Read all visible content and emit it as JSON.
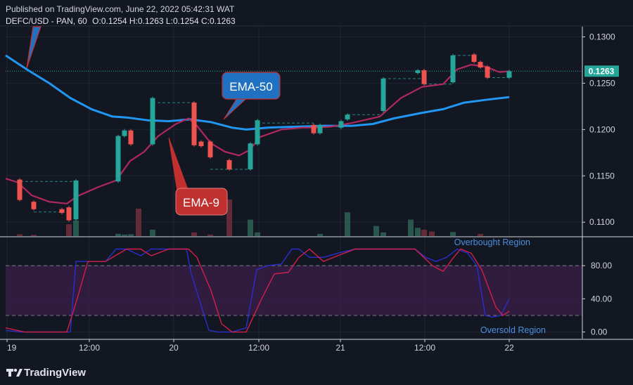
{
  "header": {
    "published": "Published on TradingView.com, June 22, 2022 05:42:31 WAT",
    "symbol_line": "DEFC/USD - PAN, 60",
    "ohlc": [
      {
        "label": "O:",
        "value": "0.1254"
      },
      {
        "label": "H:",
        "value": "0.1263"
      },
      {
        "label": "L:",
        "value": "0.1254"
      },
      {
        "label": "C:",
        "value": "0.1263"
      }
    ]
  },
  "footer": {
    "brand": "TradingView"
  },
  "colors": {
    "background": "#131722",
    "grid": "#1f2433",
    "text": "#d1d4dc",
    "up": "#26a69a",
    "down": "#ef5350",
    "ema50": "#2196f3",
    "ema9": "#b0285c",
    "stoch_k": "#2a2ecd",
    "stoch_d": "#d21f4a",
    "stoch_band": "#3b1f4a",
    "last_price_bg": "#26a69a"
  },
  "chart_data": [
    {
      "type": "candlestick",
      "title": "DEFC/USD - PAN, 60",
      "x": [
        "19",
        "12:00",
        "20",
        "12:00",
        "21",
        "12:00",
        "22"
      ],
      "ylim": [
        0.1085,
        0.1311
      ],
      "y_ticks": [
        "0.1100",
        "0.1150",
        "0.1200",
        "0.1250",
        "0.1300"
      ],
      "y_tick_values": [
        0.11,
        0.115,
        0.12,
        0.125,
        0.13
      ],
      "last_price": "0.1263",
      "last_price_value": 0.1263,
      "candles": [
        {
          "x": 28,
          "o": 0.1146,
          "c": 0.1124
        },
        {
          "x": 48,
          "o": 0.1122,
          "c": 0.1114
        },
        {
          "x": 88,
          "o": 0.1114,
          "c": 0.111
        },
        {
          "x": 98,
          "o": 0.1116,
          "c": 0.1102
        },
        {
          "x": 108,
          "o": 0.1103,
          "c": 0.1145
        },
        {
          "x": 168,
          "o": 0.1144,
          "c": 0.1193
        },
        {
          "x": 177,
          "o": 0.1193,
          "c": 0.1199
        },
        {
          "x": 186,
          "o": 0.1199,
          "c": 0.1184
        },
        {
          "x": 217,
          "o": 0.1184,
          "c": 0.1234
        },
        {
          "x": 276,
          "o": 0.1229,
          "c": 0.1183
        },
        {
          "x": 286,
          "o": 0.1187,
          "c": 0.1182
        },
        {
          "x": 299,
          "o": 0.1187,
          "c": 0.117
        },
        {
          "x": 326,
          "o": 0.1167,
          "c": 0.1157
        },
        {
          "x": 356,
          "o": 0.1157,
          "c": 0.1185
        },
        {
          "x": 366,
          "o": 0.1184,
          "c": 0.121
        },
        {
          "x": 446,
          "o": 0.1205,
          "c": 0.1196
        },
        {
          "x": 455,
          "o": 0.1196,
          "c": 0.1205
        },
        {
          "x": 485,
          "o": 0.1202,
          "c": 0.1209
        },
        {
          "x": 494,
          "o": 0.1211,
          "c": 0.1216
        },
        {
          "x": 545,
          "o": 0.122,
          "c": 0.1255
        },
        {
          "x": 594,
          "o": 0.1261,
          "c": 0.1264
        },
        {
          "x": 603,
          "o": 0.1264,
          "c": 0.1249
        },
        {
          "x": 644,
          "o": 0.1251,
          "c": 0.128
        },
        {
          "x": 674,
          "o": 0.1281,
          "c": 0.1273
        },
        {
          "x": 683,
          "o": 0.1273,
          "c": 0.1267
        },
        {
          "x": 693,
          "o": 0.1268,
          "c": 0.1256
        },
        {
          "x": 724,
          "o": 0.1256,
          "c": 0.1263
        }
      ],
      "volume": [
        {
          "x": 28,
          "v": 0.1,
          "up": false
        },
        {
          "x": 48,
          "v": 0.06,
          "up": false
        },
        {
          "x": 98,
          "v": 0.65,
          "up": false
        },
        {
          "x": 108,
          "v": 0.85,
          "up": true
        },
        {
          "x": 168,
          "v": 0.12,
          "up": true
        },
        {
          "x": 177,
          "v": 0.08,
          "up": true
        },
        {
          "x": 186,
          "v": 0.1,
          "up": true
        },
        {
          "x": 197,
          "v": 1.5,
          "up": false
        },
        {
          "x": 217,
          "v": 0.35,
          "up": true
        },
        {
          "x": 276,
          "v": 0.2,
          "up": false
        },
        {
          "x": 299,
          "v": 0.08,
          "up": false
        },
        {
          "x": 326,
          "v": 2.0,
          "up": false
        },
        {
          "x": 356,
          "v": 0.9,
          "up": true
        },
        {
          "x": 366,
          "v": 0.2,
          "up": true
        },
        {
          "x": 455,
          "v": 0.12,
          "up": true
        },
        {
          "x": 494,
          "v": 1.3,
          "up": true
        },
        {
          "x": 535,
          "v": 0.55,
          "up": true
        },
        {
          "x": 545,
          "v": 0.2,
          "up": true
        },
        {
          "x": 584,
          "v": 0.9,
          "up": true
        },
        {
          "x": 594,
          "v": 0.45,
          "up": true
        },
        {
          "x": 603,
          "v": 0.35,
          "up": false
        },
        {
          "x": 614,
          "v": 0.25,
          "up": false
        },
        {
          "x": 644,
          "v": 0.22,
          "up": true
        },
        {
          "x": 683,
          "v": 0.12,
          "up": false
        }
      ],
      "ema50": [
        [
          8,
          0.128
        ],
        [
          40,
          0.1264
        ],
        [
          70,
          0.125
        ],
        [
          100,
          0.1234
        ],
        [
          130,
          0.1222
        ],
        [
          160,
          0.1214
        ],
        [
          180,
          0.1213
        ],
        [
          210,
          0.121
        ],
        [
          240,
          0.1209
        ],
        [
          270,
          0.1211
        ],
        [
          300,
          0.1208
        ],
        [
          330,
          0.1202
        ],
        [
          350,
          0.12
        ],
        [
          380,
          0.1202
        ],
        [
          420,
          0.1203
        ],
        [
          460,
          0.1204
        ],
        [
          500,
          0.1204
        ],
        [
          530,
          0.1206
        ],
        [
          560,
          0.1212
        ],
        [
          600,
          0.1218
        ],
        [
          630,
          0.1222
        ],
        [
          660,
          0.1229
        ],
        [
          690,
          0.1232
        ],
        [
          724,
          0.1235
        ]
      ],
      "ema9": [
        [
          8,
          0.1147
        ],
        [
          25,
          0.1143
        ],
        [
          45,
          0.1129
        ],
        [
          70,
          0.1122
        ],
        [
          95,
          0.112
        ],
        [
          110,
          0.1128
        ],
        [
          140,
          0.1138
        ],
        [
          165,
          0.1145
        ],
        [
          185,
          0.1166
        ],
        [
          205,
          0.1176
        ],
        [
          225,
          0.1193
        ],
        [
          250,
          0.1206
        ],
        [
          268,
          0.1212
        ],
        [
          280,
          0.1204
        ],
        [
          300,
          0.1185
        ],
        [
          320,
          0.1176
        ],
        [
          340,
          0.1172
        ],
        [
          355,
          0.1178
        ],
        [
          370,
          0.1192
        ],
        [
          400,
          0.12
        ],
        [
          430,
          0.1202
        ],
        [
          450,
          0.1202
        ],
        [
          470,
          0.1203
        ],
        [
          500,
          0.1207
        ],
        [
          540,
          0.1214
        ],
        [
          570,
          0.1234
        ],
        [
          600,
          0.1246
        ],
        [
          630,
          0.1249
        ],
        [
          650,
          0.1265
        ],
        [
          670,
          0.127
        ],
        [
          690,
          0.1268
        ],
        [
          710,
          0.1262
        ],
        [
          724,
          0.1263
        ]
      ],
      "dashes": [
        {
          "x1": 29,
          "x2": 108,
          "y": 0.1144
        },
        {
          "x1": 48,
          "x2": 88,
          "y": 0.1111
        },
        {
          "x1": 217,
          "x2": 276,
          "y": 0.1229
        },
        {
          "x1": 299,
          "x2": 356,
          "y": 0.1157
        },
        {
          "x1": 366,
          "x2": 446,
          "y": 0.1207
        },
        {
          "x1": 494,
          "x2": 545,
          "y": 0.1216
        },
        {
          "x1": 545,
          "x2": 603,
          "y": 0.1255
        },
        {
          "x1": 603,
          "x2": 644,
          "y": 0.1249
        },
        {
          "x1": 644,
          "x2": 674,
          "y": 0.128
        },
        {
          "x1": 693,
          "x2": 724,
          "y": 0.1256
        }
      ],
      "annotations": [
        {
          "label": "EMA-50",
          "color": "#2071c2"
        },
        {
          "label": "EMA-9",
          "color": "#c0302e"
        }
      ]
    },
    {
      "type": "line",
      "title": "",
      "ylim": [
        -8,
        114
      ],
      "y_ticks": [
        "0.00",
        "40.00",
        "80.00"
      ],
      "y_tick_values": [
        0,
        40,
        80
      ],
      "bands": [
        20,
        80
      ],
      "labels": [
        "Overbought Region",
        "Oversold Region"
      ],
      "series": [
        {
          "values": [
            [
              8,
              2
            ],
            [
              30,
              0
            ],
            [
              60,
              0
            ],
            [
              90,
              0
            ],
            [
              100,
              0
            ],
            [
              108,
              85
            ],
            [
              125,
              85
            ],
            [
              150,
              85
            ],
            [
              165,
              100
            ],
            [
              180,
              100
            ],
            [
              200,
              92
            ],
            [
              215,
              100
            ],
            [
              230,
              100
            ],
            [
              250,
              100
            ],
            [
              265,
              100
            ],
            [
              272,
              70
            ],
            [
              283,
              40
            ],
            [
              297,
              2
            ],
            [
              310,
              0
            ],
            [
              330,
              0
            ],
            [
              350,
              5
            ],
            [
              365,
              75
            ],
            [
              380,
              80
            ],
            [
              400,
              82
            ],
            [
              415,
              100
            ],
            [
              425,
              100
            ],
            [
              440,
              90
            ],
            [
              460,
              90
            ],
            [
              480,
              95
            ],
            [
              505,
              100
            ],
            [
              530,
              100
            ],
            [
              560,
              100
            ],
            [
              590,
              100
            ],
            [
              605,
              90
            ],
            [
              620,
              85
            ],
            [
              635,
              90
            ],
            [
              650,
              100
            ],
            [
              665,
              95
            ],
            [
              678,
              80
            ],
            [
              690,
              20
            ],
            [
              700,
              18
            ],
            [
              712,
              20
            ],
            [
              724,
              40
            ]
          ]
        },
        {
          "values": [
            [
              8,
              5
            ],
            [
              35,
              0
            ],
            [
              60,
              0
            ],
            [
              95,
              0
            ],
            [
              108,
              35
            ],
            [
              125,
              85
            ],
            [
              150,
              85
            ],
            [
              180,
              100
            ],
            [
              200,
              100
            ],
            [
              215,
              92
            ],
            [
              240,
              100
            ],
            [
              268,
              100
            ],
            [
              280,
              90
            ],
            [
              300,
              50
            ],
            [
              315,
              10
            ],
            [
              330,
              0
            ],
            [
              350,
              0
            ],
            [
              372,
              40
            ],
            [
              390,
              70
            ],
            [
              410,
              72
            ],
            [
              425,
              90
            ],
            [
              440,
              100
            ],
            [
              460,
              85
            ],
            [
              480,
              92
            ],
            [
              505,
              100
            ],
            [
              560,
              100
            ],
            [
              590,
              100
            ],
            [
              615,
              80
            ],
            [
              630,
              73
            ],
            [
              645,
              90
            ],
            [
              655,
              100
            ],
            [
              670,
              95
            ],
            [
              685,
              75
            ],
            [
              705,
              30
            ],
            [
              715,
              20
            ],
            [
              724,
              25
            ]
          ]
        }
      ],
      "x": [
        "19",
        "12:00",
        "20",
        "12:00",
        "21",
        "12:00",
        "22"
      ]
    }
  ]
}
